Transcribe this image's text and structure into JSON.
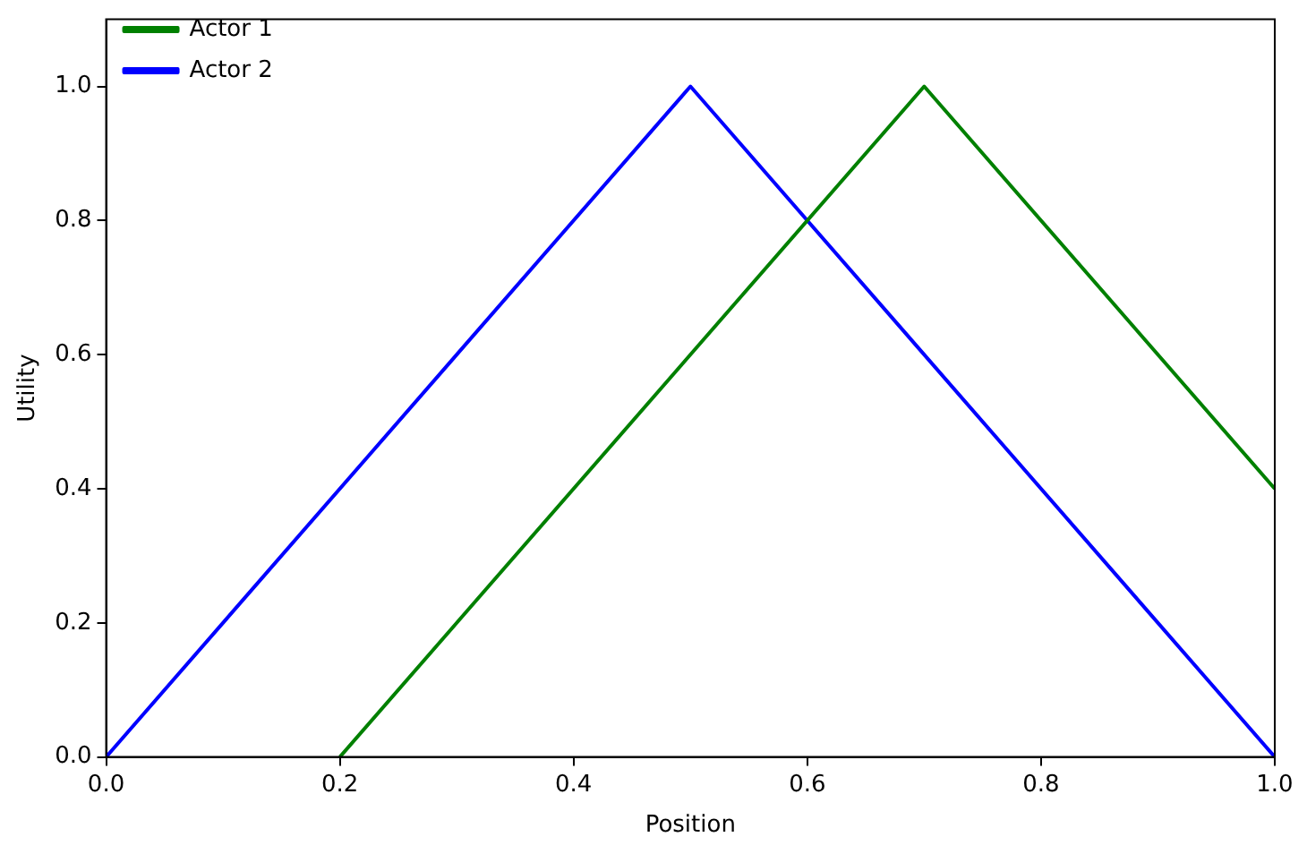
{
  "chart_data": {
    "type": "line",
    "xlabel": "Position",
    "ylabel": "Utility",
    "xlim": [
      0,
      1
    ],
    "ylim": [
      0,
      1.1
    ],
    "xticks": [
      {
        "value": 0,
        "label": "0.0"
      },
      {
        "value": 0.2,
        "label": "0.2"
      },
      {
        "value": 0.4,
        "label": "0.4"
      },
      {
        "value": 0.6,
        "label": "0.6"
      },
      {
        "value": 0.8,
        "label": "0.8"
      },
      {
        "value": 1,
        "label": "1.0"
      }
    ],
    "yticks": [
      {
        "value": 0,
        "label": "0.0"
      },
      {
        "value": 0.2,
        "label": "0.2"
      },
      {
        "value": 0.4,
        "label": "0.4"
      },
      {
        "value": 0.6,
        "label": "0.6"
      },
      {
        "value": 0.8,
        "label": "0.8"
      },
      {
        "value": 1,
        "label": "1.0"
      }
    ],
    "grid": false,
    "legend": "top left",
    "marker": "none",
    "line_style": "solid",
    "series": [
      {
        "name": "Actor 1",
        "color": "#008000",
        "x": [
          0.2,
          0.7,
          1.0
        ],
        "values": [
          0,
          1,
          0.4
        ]
      },
      {
        "name": "Actor 2",
        "color": "#0000ff",
        "x": [
          0,
          0.5,
          1.0
        ],
        "values": [
          0,
          1,
          0
        ]
      }
    ]
  }
}
